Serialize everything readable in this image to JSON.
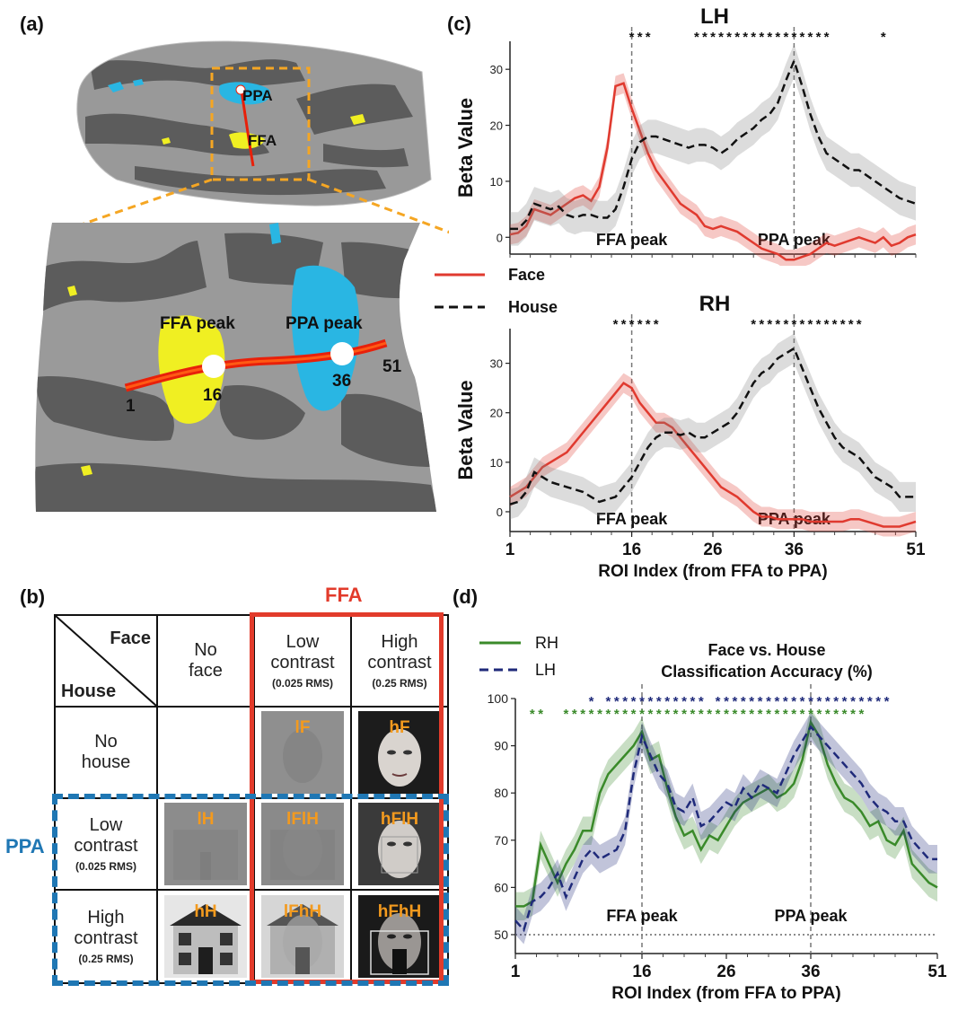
{
  "panel_labels": {
    "a": "(a)",
    "b": "(b)",
    "c": "(c)",
    "d": "(d)"
  },
  "panel_a": {
    "top_labels": {
      "ppa": "PPA",
      "ffa": "FFA"
    },
    "zoom_labels": {
      "ffa_peak": "FFA peak",
      "ppa_peak": "PPA peak",
      "idx_1": "1",
      "idx_16": "16",
      "idx_36": "36",
      "idx_51": "51"
    },
    "colors": {
      "surface_light": "#9a9a9a",
      "surface_dark": "#5c5c5c",
      "face_selective": "#f0ef22",
      "house_selective": "#29b6e3",
      "line": "#e8200a"
    }
  },
  "panel_b": {
    "ffa_label": "FFA",
    "ppa_label": "PPA",
    "corner": {
      "face": "Face",
      "house": "House"
    },
    "columns": [
      {
        "line1": "No",
        "line2": "face",
        "rms": ""
      },
      {
        "line1": "Low",
        "line2": "contrast",
        "rms": "(0.025 RMS)"
      },
      {
        "line1": "High",
        "line2": "contrast",
        "rms": "(0.25 RMS)"
      }
    ],
    "rows": [
      {
        "line1": "No",
        "line2": "house",
        "rms": ""
      },
      {
        "line1": "Low",
        "line2": "contrast",
        "rms": "(0.025 RMS)"
      },
      {
        "line1": "High",
        "line2": "contrast",
        "rms": "(0.25 RMS)"
      }
    ],
    "cells": {
      "r0c1": "lF",
      "r0c2": "hF",
      "r1c0": "lH",
      "r1c1": "lFlH",
      "r1c2": "hFlH",
      "r2c0": "hH",
      "r2c1": "lFhH",
      "r2c2": "hFhH"
    },
    "colors": {
      "ffa_box": "#e23b2b",
      "ppa_box": "#1f77b4",
      "cell_label": "#f39a1e"
    }
  },
  "chart_data": [
    {
      "type": "line",
      "title": "LH",
      "ylabel": "Beta Value",
      "xlim": [
        1,
        51
      ],
      "ylim": [
        -3,
        35
      ],
      "yticks": [
        0,
        10,
        20,
        30
      ],
      "vlines": [
        {
          "x": 16,
          "label": "FFA peak"
        },
        {
          "x": 36,
          "label": "PPA peak"
        }
      ],
      "significance": [
        {
          "from": 16,
          "to": 18
        },
        {
          "from": 24,
          "to": 40
        },
        {
          "from": 47,
          "to": 47
        }
      ],
      "x": [
        1,
        2,
        3,
        4,
        5,
        6,
        7,
        8,
        9,
        10,
        11,
        12,
        13,
        14,
        15,
        16,
        17,
        18,
        19,
        20,
        21,
        22,
        23,
        24,
        25,
        26,
        27,
        28,
        29,
        30,
        31,
        32,
        33,
        34,
        35,
        36,
        37,
        38,
        39,
        40,
        41,
        42,
        43,
        44,
        45,
        46,
        47,
        48,
        49,
        50,
        51
      ],
      "series": [
        {
          "name": "Face",
          "color": "#e03a2f",
          "dash": "solid",
          "values": [
            0.5,
            0.8,
            2,
            5,
            4.5,
            4,
            5,
            6,
            7,
            7.5,
            6.5,
            9,
            16,
            27,
            27.5,
            23,
            19,
            15,
            12,
            10,
            8,
            6,
            5,
            4,
            2,
            1.5,
            2,
            1.5,
            1,
            0,
            -1,
            -2,
            -2.5,
            -3,
            -4,
            -4,
            -3.5,
            -3,
            -2,
            -1,
            -1.5,
            -1,
            -0.5,
            0,
            -0.5,
            -1,
            0,
            -1.5,
            -1,
            0,
            0.5
          ],
          "band": 1.8
        },
        {
          "name": "House",
          "color": "#111111",
          "dash": "dashed",
          "values": [
            1.5,
            1.5,
            3,
            6,
            5.5,
            5,
            5.5,
            4,
            3.5,
            4,
            4,
            3.5,
            3.5,
            5,
            9,
            14,
            17,
            18,
            18,
            17.5,
            17,
            16.5,
            16,
            16.5,
            16.5,
            16,
            15,
            16,
            17.5,
            18.5,
            19.5,
            21,
            22,
            24,
            28,
            31.5,
            27,
            22,
            18,
            15,
            14,
            13,
            12,
            12,
            11,
            10,
            9,
            8,
            7,
            6.5,
            6
          ],
          "band": 3
        }
      ]
    },
    {
      "type": "line",
      "title": "RH",
      "ylabel": "Beta Value",
      "xlabel": "ROI Index (from FFA to PPA)",
      "xticks": [
        1,
        16,
        26,
        36,
        51
      ],
      "xlim": [
        1,
        51
      ],
      "ylim": [
        -4,
        37
      ],
      "yticks": [
        0,
        10,
        20,
        30
      ],
      "vlines": [
        {
          "x": 16,
          "label": "FFA peak"
        },
        {
          "x": 36,
          "label": "PPA peak"
        }
      ],
      "significance": [
        {
          "from": 14,
          "to": 19
        },
        {
          "from": 31,
          "to": 44
        }
      ],
      "x": [
        1,
        2,
        3,
        4,
        5,
        6,
        7,
        8,
        9,
        10,
        11,
        12,
        13,
        14,
        15,
        16,
        17,
        18,
        19,
        20,
        21,
        22,
        23,
        24,
        25,
        26,
        27,
        28,
        29,
        30,
        31,
        32,
        33,
        34,
        35,
        36,
        37,
        38,
        39,
        40,
        41,
        42,
        43,
        44,
        45,
        46,
        47,
        48,
        49,
        50,
        51
      ],
      "series": [
        {
          "name": "Face",
          "color": "#e03a2f",
          "dash": "solid",
          "values": [
            3,
            4,
            5,
            7,
            9,
            10,
            11,
            12,
            14,
            16,
            18,
            20,
            22,
            24,
            26,
            25,
            22,
            20,
            18,
            18,
            17,
            15,
            13,
            11,
            9,
            7,
            5,
            4,
            3,
            1.5,
            0,
            -1,
            -1,
            -1.5,
            -1.5,
            -1.5,
            -1.5,
            -2,
            -2,
            -2,
            -2,
            -2,
            -1.5,
            -1.5,
            -2,
            -2.5,
            -3,
            -3,
            -3,
            -2.5,
            -2
          ],
          "band": 2
        },
        {
          "name": "House",
          "color": "#111111",
          "dash": "dashed",
          "values": [
            1.5,
            2,
            4,
            8,
            7,
            6,
            5.5,
            5,
            4.5,
            4,
            3,
            2,
            2.5,
            3,
            5,
            7,
            10,
            13,
            15,
            16,
            16,
            15.5,
            16,
            15,
            15,
            16,
            17,
            18,
            20,
            23,
            26,
            28,
            29,
            31,
            32,
            33,
            29,
            25,
            21,
            18,
            15,
            13,
            12,
            11,
            9,
            7,
            6,
            5,
            3,
            3,
            3
          ],
          "band": 3
        }
      ]
    },
    {
      "type": "line",
      "title": "Face vs. House Classification Accuracy (%)",
      "xlabel": "ROI Index (from FFA to PPA)",
      "xticks": [
        1,
        16,
        26,
        36,
        51
      ],
      "xlim": [
        1,
        51
      ],
      "ylim": [
        46,
        100
      ],
      "yticks": [
        50,
        60,
        70,
        80,
        90,
        100
      ],
      "chance": 50,
      "vlines": [
        {
          "x": 16,
          "label": "FFA peak"
        },
        {
          "x": 36,
          "label": "PPA peak"
        }
      ],
      "legend": "top-left",
      "significance": [
        {
          "series": "RH",
          "from": 3,
          "to": 4
        },
        {
          "series": "RH",
          "from": 7,
          "to": 42
        },
        {
          "series": "LH",
          "from": 10,
          "to": 10
        },
        {
          "series": "LH",
          "from": 12,
          "to": 23
        },
        {
          "series": "LH",
          "from": 25,
          "to": 45
        }
      ],
      "x": [
        1,
        2,
        3,
        4,
        5,
        6,
        7,
        8,
        9,
        10,
        11,
        12,
        13,
        14,
        15,
        16,
        17,
        18,
        19,
        20,
        21,
        22,
        23,
        24,
        25,
        26,
        27,
        28,
        29,
        30,
        31,
        32,
        33,
        34,
        35,
        36,
        37,
        38,
        39,
        40,
        41,
        42,
        43,
        44,
        45,
        46,
        47,
        48,
        49,
        50,
        51
      ],
      "series": [
        {
          "name": "RH",
          "color": "#3a8a2a",
          "dash": "solid",
          "values": [
            56,
            56,
            57,
            69,
            65,
            61,
            65,
            68,
            72,
            72,
            80,
            84,
            86,
            88,
            90,
            93,
            87,
            88,
            81,
            75,
            71,
            72,
            68,
            71,
            70,
            73,
            76,
            78,
            79,
            80,
            81,
            79,
            80,
            82,
            87,
            95,
            92,
            86,
            82,
            79,
            78,
            76,
            73,
            74,
            70,
            69,
            72,
            65,
            63,
            61,
            60
          ],
          "band": 3
        },
        {
          "name": "LH",
          "color": "#1f2a7a",
          "dash": "dashed",
          "values": [
            53,
            51,
            57,
            58,
            60,
            63,
            58,
            62,
            66,
            68,
            66,
            67,
            68,
            72,
            84,
            92,
            88,
            84,
            82,
            77,
            76,
            79,
            73,
            74,
            76,
            78,
            77,
            81,
            79,
            82,
            81,
            80,
            84,
            88,
            91,
            94,
            92,
            90,
            88,
            86,
            84,
            82,
            79,
            77,
            76,
            74,
            74,
            70,
            68,
            66,
            66
          ],
          "band": 3
        }
      ]
    }
  ],
  "legend_c": {
    "face": "Face",
    "house": "House"
  }
}
